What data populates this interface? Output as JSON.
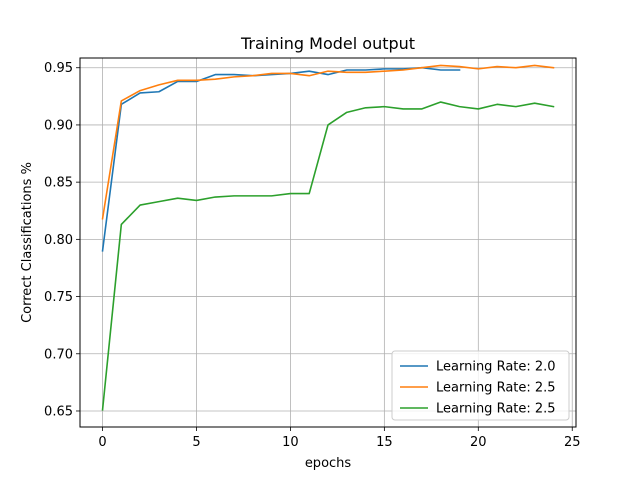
{
  "chart_data": {
    "type": "line",
    "title": "Training Model output",
    "xlabel": "epochs",
    "ylabel": "Correct Classifications %",
    "xlim": [
      -1.2,
      25.2
    ],
    "ylim": [
      0.636,
      0.9585
    ],
    "xticks": [
      0,
      5,
      10,
      15,
      20,
      25
    ],
    "yticks": [
      0.65,
      0.7,
      0.75,
      0.8,
      0.85,
      0.9,
      0.95
    ],
    "xtick_labels": [
      "0",
      "5",
      "10",
      "15",
      "20",
      "25"
    ],
    "ytick_labels": [
      "0.65",
      "0.70",
      "0.75",
      "0.80",
      "0.85",
      "0.90",
      "0.95"
    ],
    "grid": true,
    "legend_position": "lower-right",
    "series": [
      {
        "name": "Learning Rate: 2.0",
        "color": "#1f77b4",
        "x": [
          0,
          1,
          2,
          3,
          4,
          5,
          6,
          7,
          8,
          9,
          10,
          11,
          12,
          13,
          14,
          15,
          16,
          17,
          18,
          19
        ],
        "values": [
          0.79,
          0.918,
          0.928,
          0.929,
          0.938,
          0.938,
          0.944,
          0.944,
          0.943,
          0.944,
          0.945,
          0.947,
          0.944,
          0.948,
          0.948,
          0.949,
          0.949,
          0.95,
          0.948,
          0.948
        ]
      },
      {
        "name": "Learning Rate: 2.5",
        "color": "#ff7f0e",
        "x": [
          0,
          1,
          2,
          3,
          4,
          5,
          6,
          7,
          8,
          9,
          10,
          11,
          12,
          13,
          14,
          15,
          16,
          17,
          18,
          19,
          20,
          21,
          22,
          23,
          24
        ],
        "values": [
          0.818,
          0.921,
          0.93,
          0.935,
          0.939,
          0.939,
          0.94,
          0.942,
          0.943,
          0.945,
          0.945,
          0.943,
          0.947,
          0.946,
          0.946,
          0.947,
          0.948,
          0.95,
          0.952,
          0.951,
          0.949,
          0.951,
          0.95,
          0.952,
          0.95
        ]
      },
      {
        "name": "Learning Rate: 2.5",
        "color": "#2ca02c",
        "x": [
          0,
          1,
          2,
          3,
          4,
          5,
          6,
          7,
          8,
          9,
          10,
          11,
          12,
          13,
          14,
          15,
          16,
          17,
          18,
          19,
          20,
          21,
          22,
          23,
          24
        ],
        "values": [
          0.651,
          0.813,
          0.83,
          0.833,
          0.836,
          0.834,
          0.837,
          0.838,
          0.838,
          0.838,
          0.84,
          0.84,
          0.9,
          0.911,
          0.915,
          0.916,
          0.914,
          0.914,
          0.92,
          0.916,
          0.914,
          0.918,
          0.916,
          0.919,
          0.916
        ]
      }
    ]
  }
}
